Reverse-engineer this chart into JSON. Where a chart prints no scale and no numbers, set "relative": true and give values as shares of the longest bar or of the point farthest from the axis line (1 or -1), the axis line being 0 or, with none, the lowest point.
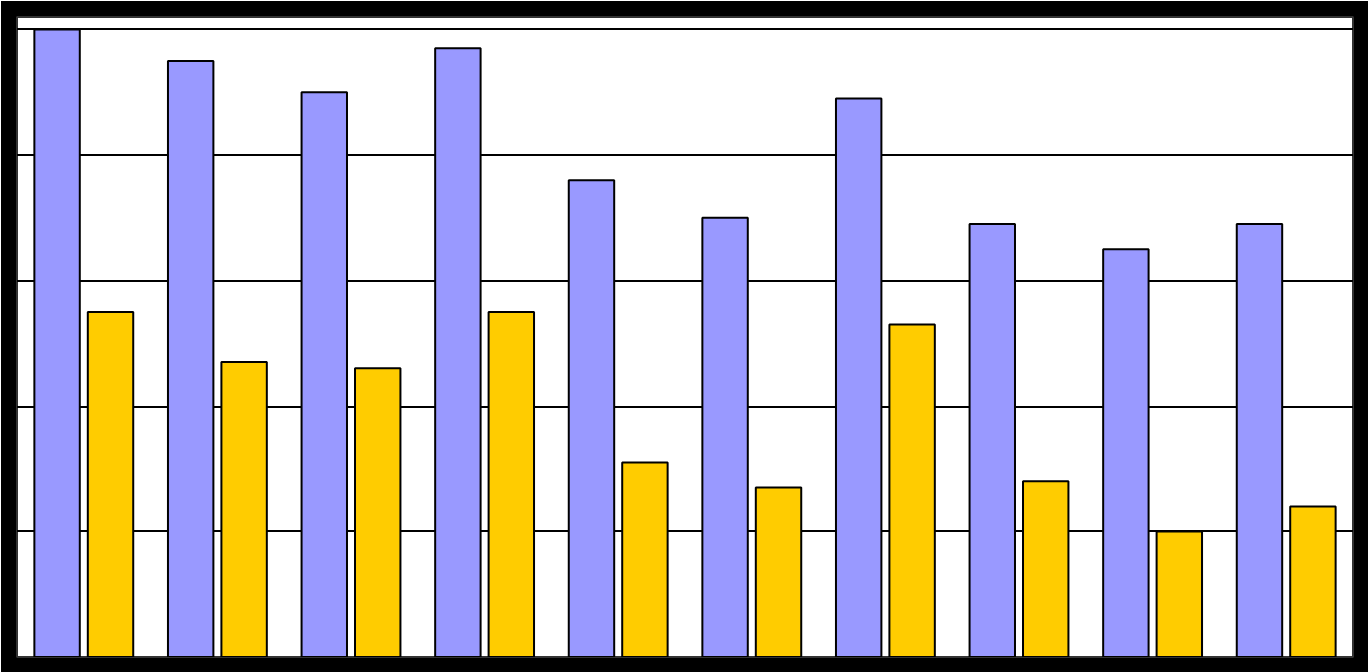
{
  "chart_data": {
    "type": "bar",
    "relative": true,
    "grid": "y",
    "categories": [
      null,
      null,
      null,
      null,
      null,
      null,
      null,
      null,
      null,
      null
    ],
    "series": [
      {
        "color": "#9999ff",
        "values": [
          1,
          0.95,
          0.9,
          0.97,
          0.76,
          0.7,
          0.89,
          0.69,
          0.65,
          0.69
        ]
      },
      {
        "color": "#ffcc00",
        "values": [
          0.55,
          0.47,
          0.46,
          0.55,
          0.31,
          0.27,
          0.53,
          0.28,
          0.2,
          0.24
        ]
      }
    ]
  }
}
